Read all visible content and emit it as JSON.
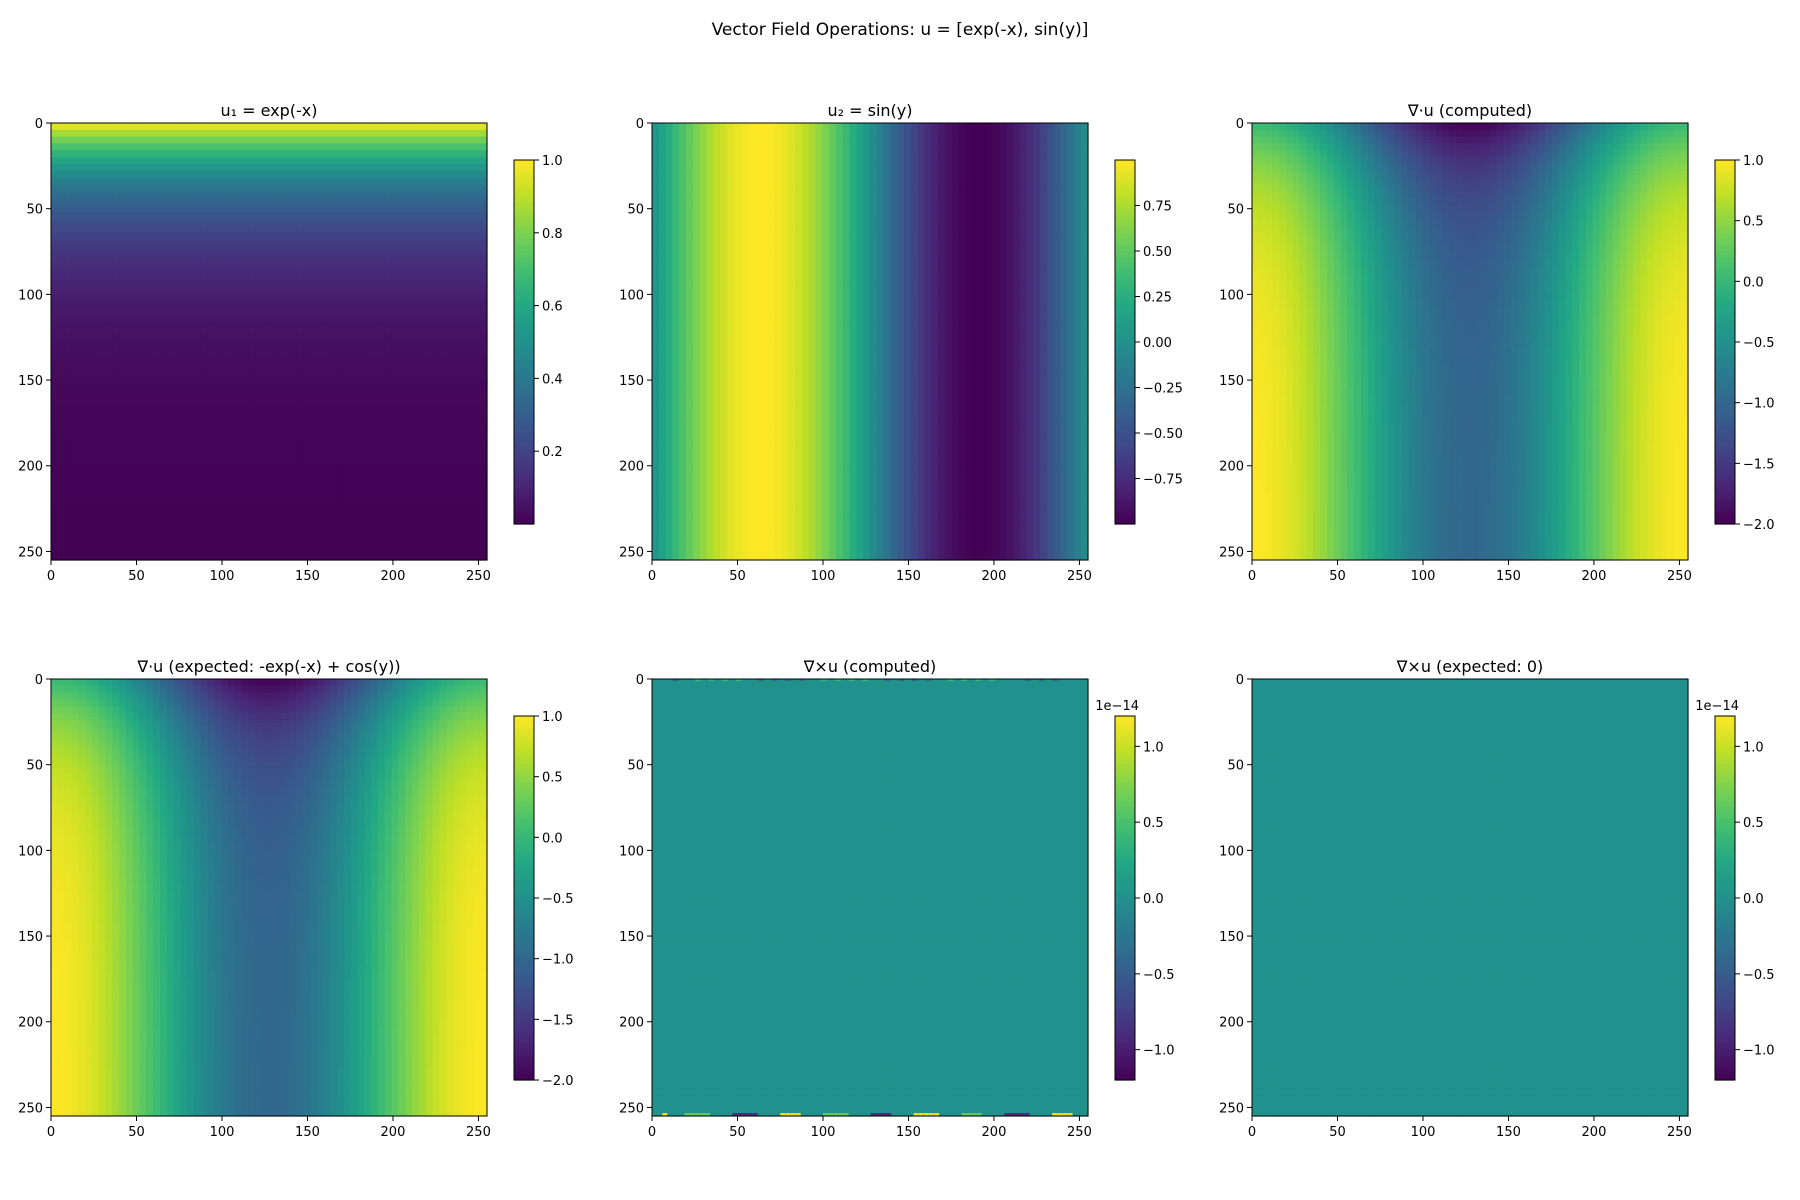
{
  "suptitle": "Vector Field Operations: u = [exp(-x), sin(y)]",
  "chart_data": [
    {
      "type": "heatmap",
      "title": "u₁ = exp(-x)",
      "field": "u1",
      "xlim": [
        0,
        255
      ],
      "ylim": [
        255,
        0
      ],
      "xticks": [
        0,
        50,
        100,
        150,
        200,
        250
      ],
      "yticks": [
        0,
        50,
        100,
        150,
        200,
        250
      ],
      "colormap": "viridis",
      "clim": [
        0.0,
        1.0
      ],
      "cbar_ticks": [
        0.2,
        0.4,
        0.6,
        0.8,
        1.0
      ],
      "cbar_tick_labels": [
        "0.2",
        "0.4",
        "0.6",
        "0.8",
        "1.0"
      ],
      "cbar_offset": ""
    },
    {
      "type": "heatmap",
      "title": "u₂ = sin(y)",
      "field": "u2",
      "xlim": [
        0,
        255
      ],
      "ylim": [
        255,
        0
      ],
      "xticks": [
        0,
        50,
        100,
        150,
        200,
        250
      ],
      "yticks": [
        0,
        50,
        100,
        150,
        200,
        250
      ],
      "colormap": "viridis",
      "clim": [
        -1.0,
        1.0
      ],
      "cbar_ticks": [
        -0.75,
        -0.5,
        -0.25,
        0.0,
        0.25,
        0.5,
        0.75
      ],
      "cbar_tick_labels": [
        "−0.75",
        "−0.50",
        "−0.25",
        "0.00",
        "0.25",
        "0.50",
        "0.75"
      ],
      "cbar_offset": ""
    },
    {
      "type": "heatmap",
      "title": "∇·u (computed)",
      "field": "div",
      "xlim": [
        0,
        255
      ],
      "ylim": [
        255,
        0
      ],
      "xticks": [
        0,
        50,
        100,
        150,
        200,
        250
      ],
      "yticks": [
        0,
        50,
        100,
        150,
        200,
        250
      ],
      "colormap": "viridis",
      "clim": [
        -2.0,
        1.0
      ],
      "cbar_ticks": [
        -2.0,
        -1.5,
        -1.0,
        -0.5,
        0.0,
        0.5,
        1.0
      ],
      "cbar_tick_labels": [
        "−2.0",
        "−1.5",
        "−1.0",
        "−0.5",
        "0.0",
        "0.5",
        "1.0"
      ],
      "cbar_offset": ""
    },
    {
      "type": "heatmap",
      "title": "∇·u (expected: -exp(-x) + cos(y))",
      "field": "div",
      "xlim": [
        0,
        255
      ],
      "ylim": [
        255,
        0
      ],
      "xticks": [
        0,
        50,
        100,
        150,
        200,
        250
      ],
      "yticks": [
        0,
        50,
        100,
        150,
        200,
        250
      ],
      "colormap": "viridis",
      "clim": [
        -2.0,
        1.0
      ],
      "cbar_ticks": [
        -2.0,
        -1.5,
        -1.0,
        -0.5,
        0.0,
        0.5,
        1.0
      ],
      "cbar_tick_labels": [
        "−2.0",
        "−1.5",
        "−1.0",
        "−0.5",
        "0.0",
        "0.5",
        "1.0"
      ],
      "cbar_offset": ""
    },
    {
      "type": "heatmap",
      "title": "∇×u (computed)",
      "field": "zero_noisy",
      "xlim": [
        0,
        255
      ],
      "ylim": [
        255,
        0
      ],
      "xticks": [
        0,
        50,
        100,
        150,
        200,
        250
      ],
      "yticks": [
        0,
        50,
        100,
        150,
        200,
        250
      ],
      "colormap": "viridis",
      "clim": [
        -1.2,
        1.2
      ],
      "cbar_ticks": [
        -1.0,
        -0.5,
        0.0,
        0.5,
        1.0
      ],
      "cbar_tick_labels": [
        "−1.0",
        "−0.5",
        "0.0",
        "0.5",
        "1.0"
      ],
      "cbar_offset": "1e−14"
    },
    {
      "type": "heatmap",
      "title": "∇×u (expected: 0)",
      "field": "zero",
      "xlim": [
        0,
        255
      ],
      "ylim": [
        255,
        0
      ],
      "xticks": [
        0,
        50,
        100,
        150,
        200,
        250
      ],
      "yticks": [
        0,
        50,
        100,
        150,
        200,
        250
      ],
      "colormap": "viridis",
      "clim": [
        -1.2,
        1.2
      ],
      "cbar_ticks": [
        -1.0,
        -0.5,
        0.0,
        0.5,
        1.0
      ],
      "cbar_tick_labels": [
        "−1.0",
        "−0.5",
        "0.0",
        "0.5",
        "1.0"
      ],
      "cbar_offset": "1e−14"
    }
  ]
}
